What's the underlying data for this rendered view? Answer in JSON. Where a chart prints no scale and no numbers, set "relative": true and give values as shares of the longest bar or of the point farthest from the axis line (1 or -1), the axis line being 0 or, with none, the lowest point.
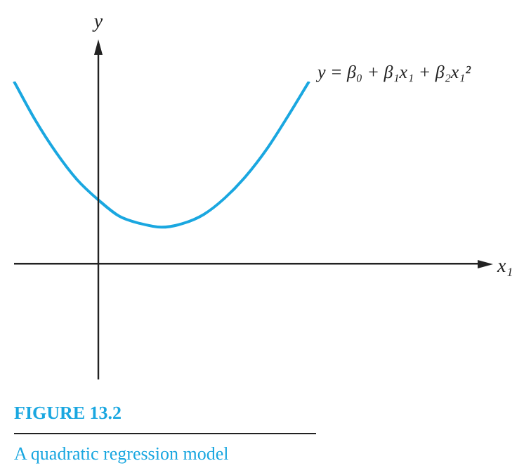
{
  "chart_data": {
    "type": "line",
    "title": "FIGURE 13.2",
    "subtitle": "A quadratic regression model",
    "xlabel": "x₁",
    "ylabel": "y",
    "relative": true,
    "marker": "none",
    "grid": false,
    "legend": false,
    "categories": [
      null,
      null,
      null,
      null,
      null,
      null,
      null,
      null,
      null,
      null,
      null,
      null,
      null,
      null,
      null,
      null,
      null,
      null,
      null,
      null,
      null,
      null,
      null
    ],
    "series": [
      {
        "color": "#1aa7e0",
        "values": [
          1.0,
          0.79,
          0.61,
          0.46,
          0.35,
          0.26,
          0.22,
          0.2,
          0.22,
          0.27,
          0.36,
          0.48,
          0.63,
          0.81,
          1.0,
          null,
          null,
          null,
          null,
          null,
          null,
          null,
          null
        ]
      }
    ],
    "annotations": [
      "y = β₀ + β₁x₁ + β₂x₁²"
    ]
  }
}
